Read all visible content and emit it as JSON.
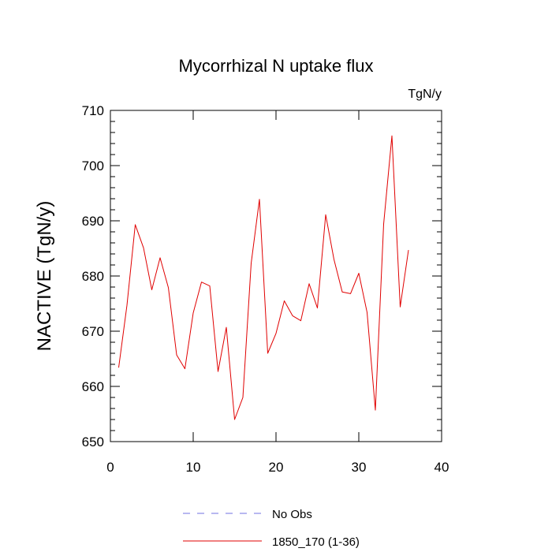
{
  "chart_data": {
    "type": "line",
    "title": "Mycorrhizal N uptake flux",
    "units_label": "TgN/y",
    "ylabel": "NACTIVE  (TgN/y)",
    "xlabel": "",
    "xlim": [
      0,
      40
    ],
    "ylim": [
      650,
      710
    ],
    "x_ticks": [
      0,
      10,
      20,
      30,
      40
    ],
    "y_ticks": [
      650,
      660,
      670,
      680,
      690,
      700,
      710
    ],
    "grid": false,
    "legend_position": "bottom-center",
    "legend": [
      {
        "label": "No Obs",
        "color": "#7070e0",
        "style": "dashed"
      },
      {
        "label": "1850_170 (1-36)",
        "color": "#e00000",
        "style": "solid"
      }
    ],
    "series": [
      {
        "name": "1850_170 (1-36)",
        "color": "#e00000",
        "x": [
          1,
          2,
          3,
          4,
          5,
          6,
          7,
          8,
          9,
          10,
          11,
          12,
          13,
          14,
          15,
          16,
          17,
          18,
          19,
          20,
          21,
          22,
          23,
          24,
          25,
          26,
          27,
          28,
          29,
          30,
          31,
          32,
          33,
          34,
          35,
          36
        ],
        "values": [
          663.4,
          674.7,
          689.3,
          685.1,
          677.5,
          683.3,
          677.9,
          665.7,
          663.2,
          673.3,
          678.9,
          678.2,
          662.7,
          670.7,
          654.0,
          658.0,
          682.3,
          693.9,
          666.0,
          669.6,
          675.5,
          672.8,
          671.9,
          678.6,
          674.2,
          691.1,
          683.0,
          677.1,
          676.8,
          680.5,
          673.4,
          655.7,
          689.4,
          705.4,
          674.4,
          684.7
        ]
      }
    ]
  }
}
